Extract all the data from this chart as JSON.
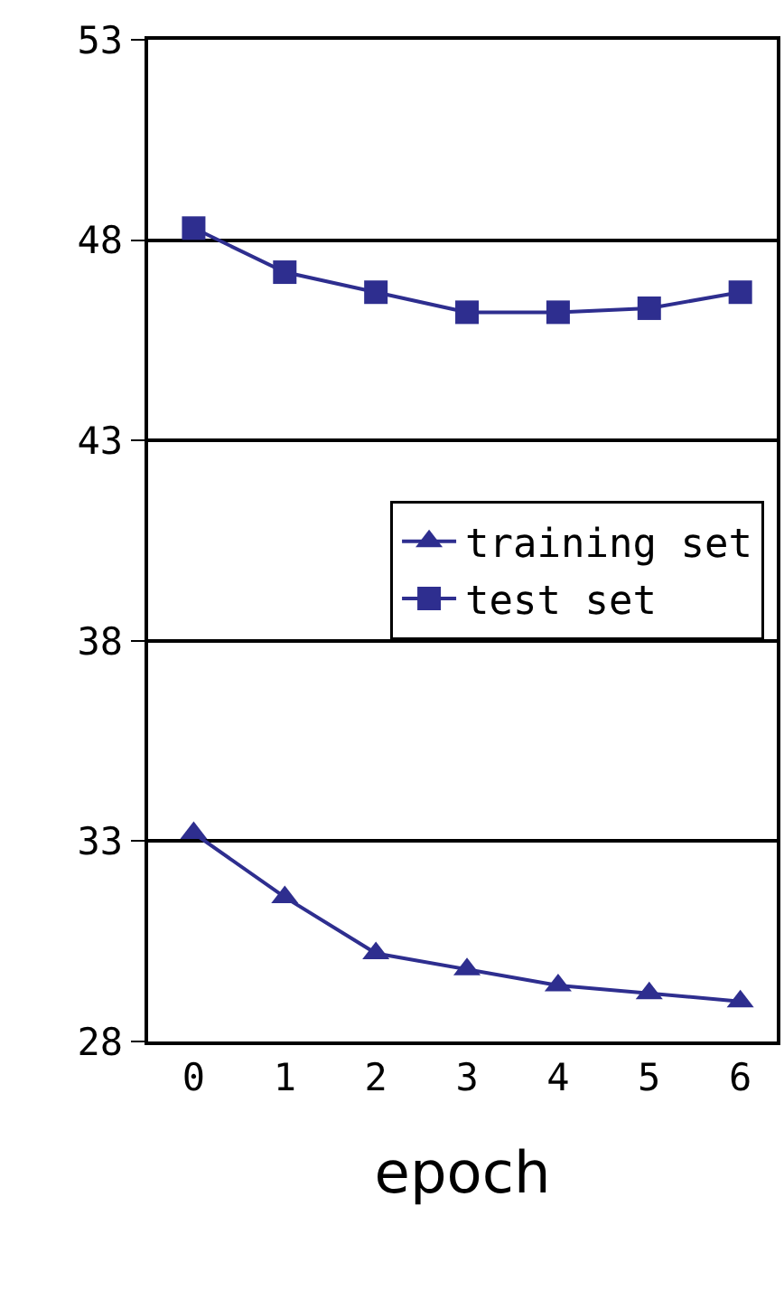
{
  "chart_data": {
    "type": "line",
    "xlabel": "epoch",
    "categories": [
      "0",
      "1",
      "2",
      "3",
      "4",
      "5",
      "6"
    ],
    "series": [
      {
        "name": "training set",
        "color": "#2e2e8f",
        "marker": "triangle",
        "values": [
          33.2,
          31.6,
          30.2,
          29.8,
          29.4,
          29.2,
          29.0
        ]
      },
      {
        "name": "test set",
        "color": "#2e2e8f",
        "marker": "square",
        "values": [
          48.3,
          47.2,
          46.7,
          46.2,
          46.2,
          46.3,
          46.7
        ]
      }
    ],
    "ylim": [
      28,
      53
    ],
    "yticks": [
      28,
      33,
      38,
      43,
      48,
      53
    ],
    "grid": "y",
    "legend": "right",
    "line_style": "solid"
  }
}
